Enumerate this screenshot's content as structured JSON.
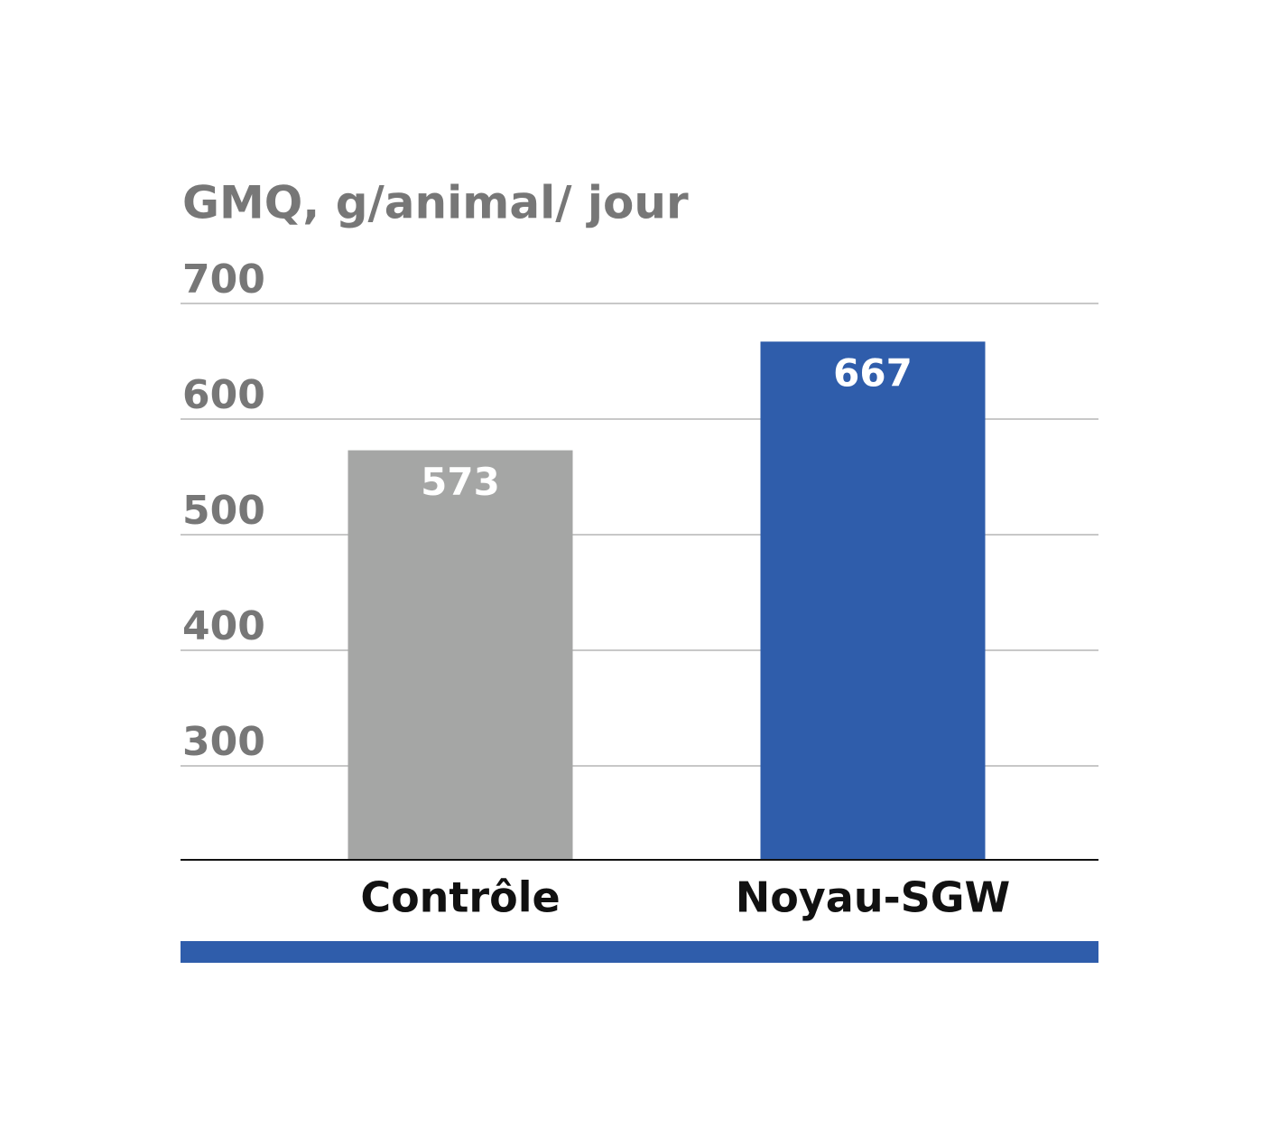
{
  "chart_data": {
    "type": "bar",
    "title": "GMQ, g/animal/ jour",
    "categories": [
      "Contrôle",
      "Noyau-SGW"
    ],
    "values": [
      573,
      667
    ],
    "colors": [
      "#a5a6a5",
      "#2f5dab"
    ],
    "ylim": [
      218.75,
      700
    ],
    "yticks": [
      300,
      400,
      500,
      600,
      700
    ],
    "grid": true
  }
}
